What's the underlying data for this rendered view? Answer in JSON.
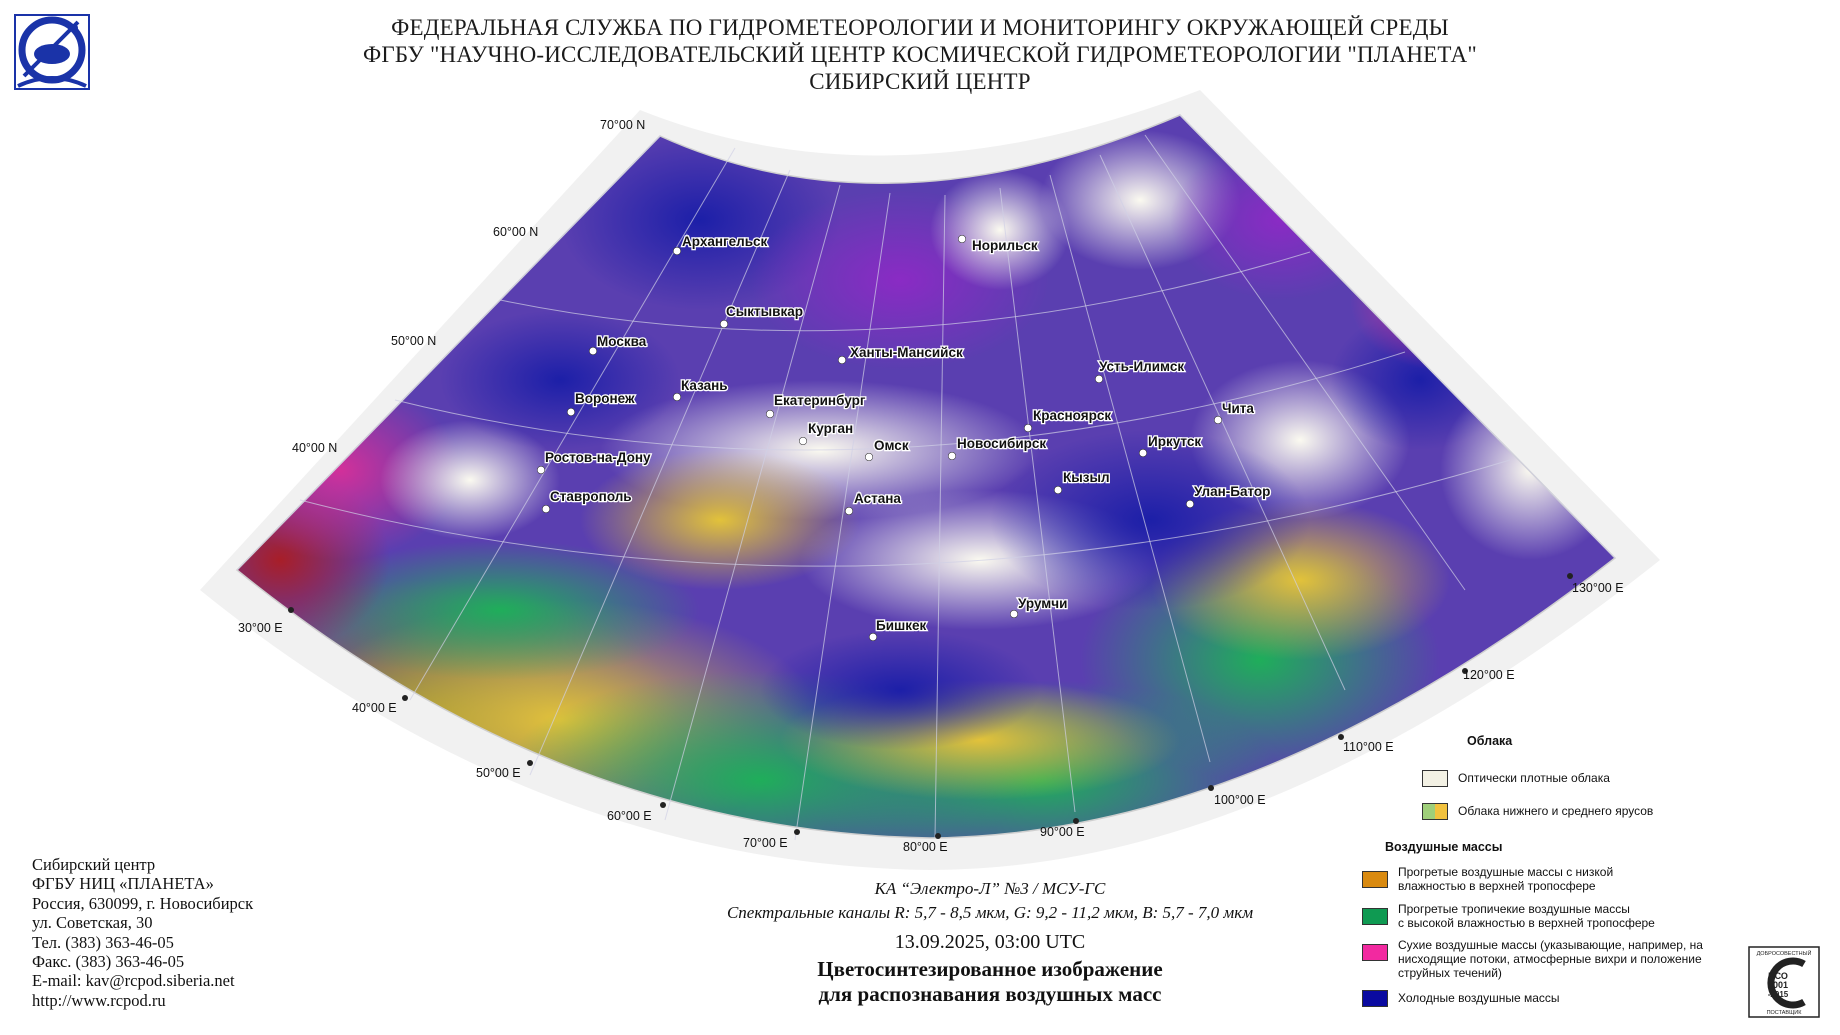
{
  "header": {
    "line1": "ФЕДЕРАЛЬНАЯ СЛУЖБА ПО ГИДРОМЕТЕОРОЛОГИИ И МОНИТОРИНГУ ОКРУЖАЮЩЕЙ СРЕДЫ",
    "line2": "ФГБУ \"НАУЧНО-ИССЛЕДОВАТЕЛЬСКИЙ ЦЕНТР КОСМИЧЕСКОЙ ГИДРОМЕТЕОРОЛОГИИ \"ПЛАНЕТА\"",
    "line3": "СИБИРСКИЙ ЦЕНТР"
  },
  "map": {
    "lat_labels": [
      "70°00 N",
      "60°00 N",
      "50°00 N",
      "40°00 N"
    ],
    "lon_labels": [
      "30°00 E",
      "40°00 E",
      "50°00 E",
      "60°00 E",
      "70°00 E",
      "80°00 E",
      "90°00 E",
      "100°00 E",
      "110°00 E",
      "120°00 E",
      "130°00 E"
    ],
    "cities": [
      "Архангельск",
      "Норильск",
      "Сыктывкар",
      "Москва",
      "Ханты-Мансийск",
      "Усть-Илимск",
      "Казань",
      "Воронеж",
      "Екатеринбург",
      "Красноярск",
      "Чита",
      "Курган",
      "Омск",
      "Новосибирск",
      "Иркутск",
      "Ростов-на-Дону",
      "Кызыл",
      "Ставрополь",
      "Астана",
      "Улан-Батор",
      "Урумчи",
      "Бишкек"
    ],
    "colors": {
      "cold_air": "#1c1fa8",
      "dry_air": "#e23a9c",
      "warm_dry": "#d9b22a",
      "tropical_moist": "#1fae5a",
      "thick_cloud": "#f4f1df"
    }
  },
  "contacts": [
    "Сибирский центр",
    "ФГБУ НИЦ «ПЛАНЕТА»",
    "Россия, 630099, г. Новосибирск",
    "ул. Советская, 30",
    "Тел. (383) 363-46-05",
    "Факс. (383) 363-46-05",
    "E-mail: kav@rcpod.siberia.net",
    "http://www.rcpod.ru"
  ],
  "caption": {
    "satellite": "КА “Электро-Л” №3 / МСУ-ГС",
    "channels": "Спектральные каналы R: 5,7 - 8,5 мкм, G: 9,2 - 11,2 мкм, B: 5,7 - 7,0 мкм",
    "datetime": "13.09.2025, 03:00 UTC",
    "title1": "Цветосинтезированное изображение",
    "title2": "для распознавания воздушных масс"
  },
  "legend": {
    "clouds_title": "Облака",
    "thick_clouds": "Оптически плотные облака",
    "low_mid_clouds": "Облака нижнего и среднего ярусов",
    "air_title": "Воздушные массы",
    "warm_dry_1": "Прогретые воздушные массы с низкой",
    "warm_dry_2": "влажностью в верхней тропосфере",
    "tropical_1": "Прогретые тропичекие воздушные массы",
    "tropical_2": "с высокой влажностью в верхней тропосфере",
    "dry_1": "Сухие воздушные массы (указывающие, например, на",
    "dry_2": "нисходящие потоки, атмосферные вихри и положение",
    "dry_3": "струйных течений)",
    "cold": "Холодные воздушные массы",
    "colors": {
      "thick": "#f3f1e4",
      "low_a": "#9fcf7a",
      "low_b": "#f2c23e",
      "warm_dry": "#d98a10",
      "tropical": "#0f9a52",
      "dry": "#f229a0",
      "cold": "#0a0aa0"
    }
  },
  "iso": {
    "top": "ДОБРОСОВЕСТНЫЙ",
    "l1": "ИСО",
    "l2": "9001",
    "l3": "-2015",
    "bottom": "ПОСТАВЩИК"
  }
}
